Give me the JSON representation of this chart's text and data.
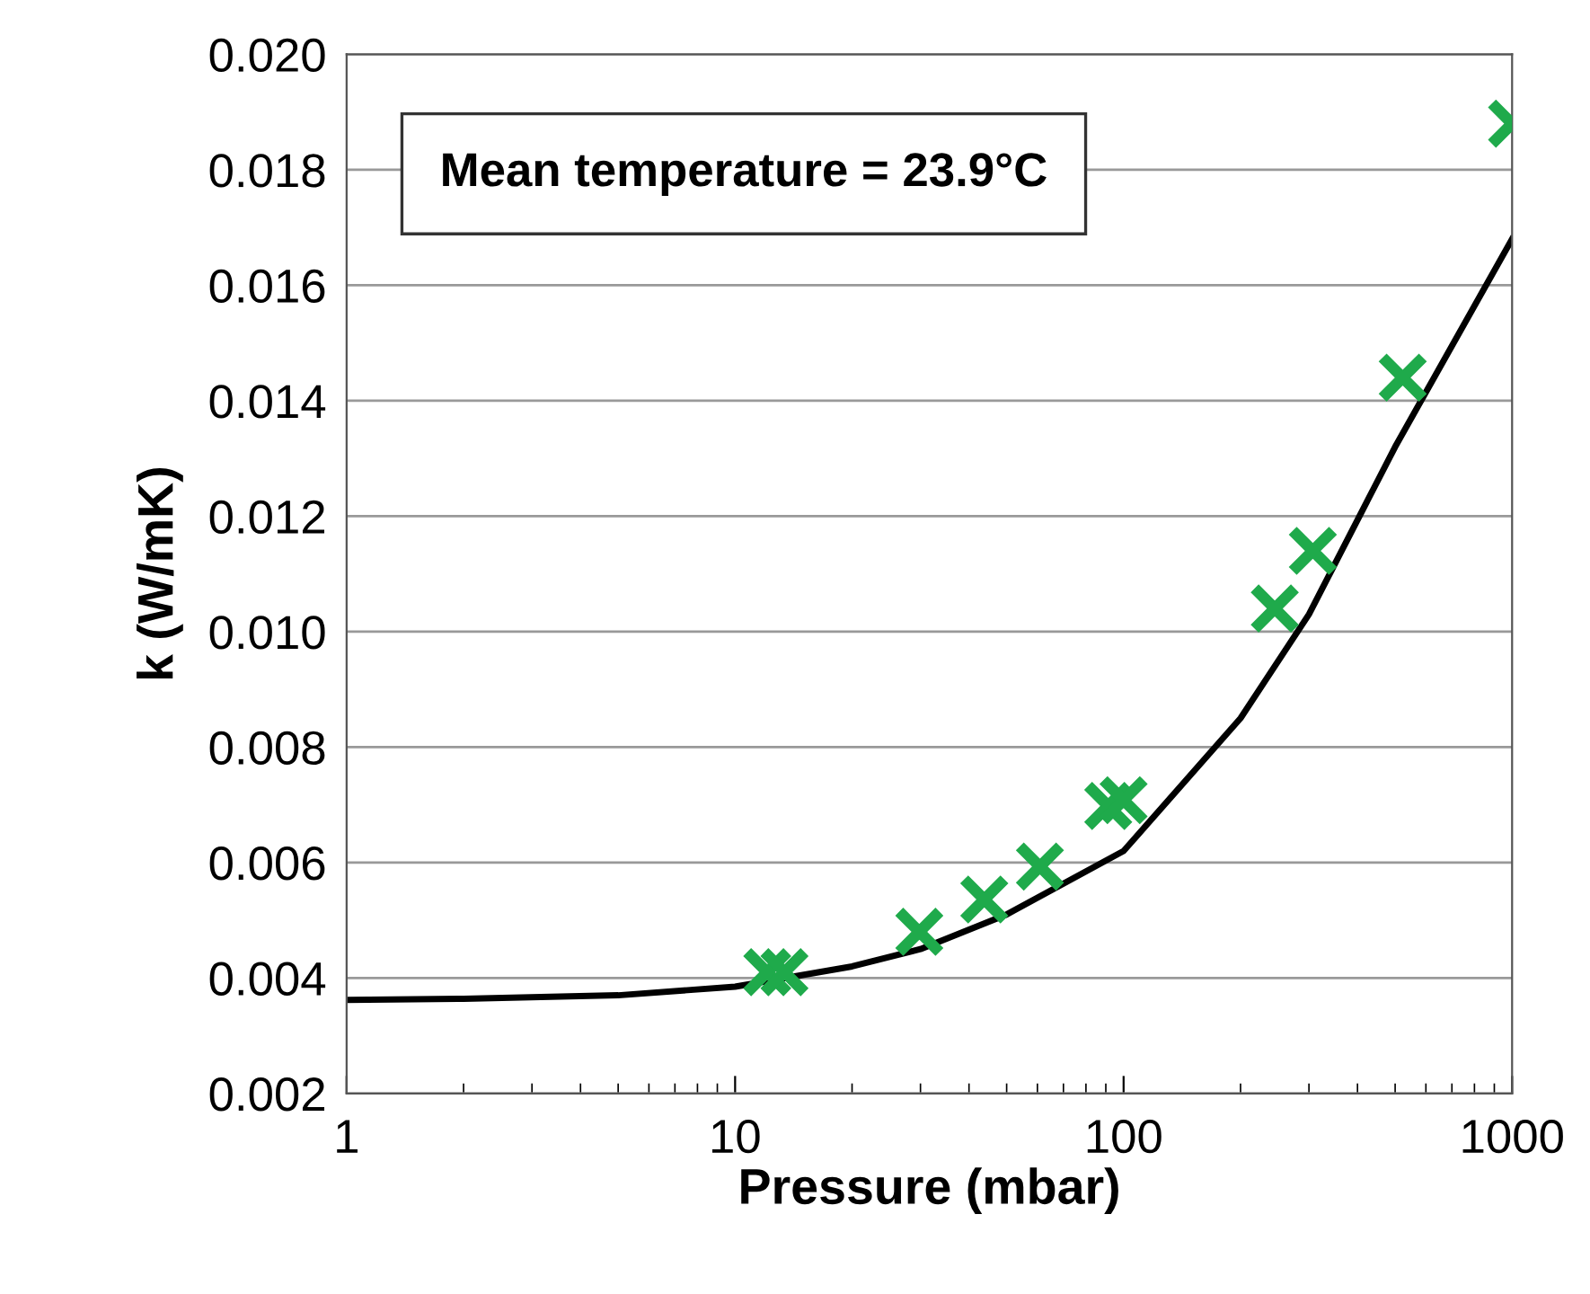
{
  "chart_data": {
    "type": "scatter",
    "xlabel": "Pressure (mbar)",
    "ylabel": "k (W/mK)",
    "annotations": [
      "Mean temperature = 23.9°C"
    ],
    "log": "x",
    "grid": "y",
    "legend": false,
    "xlim": [
      1,
      1000
    ],
    "xticks": [
      1,
      10,
      100,
      1000
    ],
    "ylim": [
      0.002,
      0.02
    ],
    "yticks": [
      {
        "value": 0.002,
        "label": "0.002"
      },
      {
        "value": 0.004,
        "label": "0.004"
      },
      {
        "value": 0.006,
        "label": "0.006"
      },
      {
        "value": 0.008,
        "label": "0.008"
      },
      {
        "value": 0.01,
        "label": "0.010"
      },
      {
        "value": 0.012,
        "label": "0.012"
      },
      {
        "value": 0.014,
        "label": "0.014"
      },
      {
        "value": 0.016,
        "label": "0.016"
      },
      {
        "value": 0.018,
        "label": "0.018"
      },
      {
        "value": 0.02,
        "label": "0.020"
      }
    ],
    "series": [
      {
        "color": "#1faa4b",
        "marker": "cross",
        "x": [
          12.1,
          13.4,
          29.8,
          43.8,
          60.9,
          91.3,
          100,
          245,
          307,
          523,
          1000
        ],
        "values": [
          0.0041,
          0.0041,
          0.0048,
          0.00536,
          0.00593,
          0.00698,
          0.00708,
          0.0104,
          0.0114,
          0.0144,
          0.0188
        ]
      },
      {
        "type": "line",
        "color": "#000000",
        "line_style": "solid",
        "x": [
          1,
          2,
          5,
          10,
          20,
          30,
          50,
          100,
          200,
          300,
          500,
          1000
        ],
        "values": [
          0.00362,
          0.00364,
          0.0037,
          0.00385,
          0.0042,
          0.0045,
          0.0051,
          0.0062,
          0.0085,
          0.0103,
          0.0132,
          0.0168
        ]
      }
    ]
  }
}
